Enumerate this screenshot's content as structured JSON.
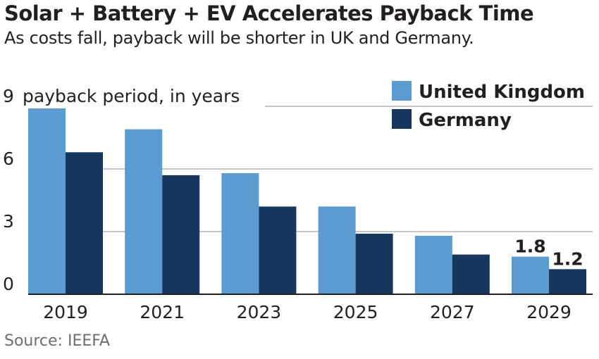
{
  "header": {
    "title": "Solar + Battery + EV Accelerates Payback Time",
    "subtitle": "As costs fall, payback will be shorter in UK and Germany."
  },
  "footer": {
    "source": "Source: IEEFA"
  },
  "colors": {
    "united_kingdom": "#5b9bd0",
    "germany": "#17365d",
    "grid": "#b3b3b3",
    "axis": "#231f20"
  },
  "chart_data": {
    "type": "bar",
    "title": "Solar + Battery + EV Accelerates Payback Time",
    "subtitle": "As costs fall, payback will be shorter in UK and Germany.",
    "ylabel": "payback period, in years",
    "categories": [
      "2019",
      "2021",
      "2023",
      "2025",
      "2027",
      "2029"
    ],
    "series": [
      {
        "name": "United Kingdom",
        "values": [
          8.9,
          7.9,
          5.8,
          4.2,
          2.8,
          1.8
        ]
      },
      {
        "name": "Germany",
        "values": [
          6.8,
          5.7,
          4.2,
          2.9,
          1.9,
          1.2
        ]
      }
    ],
    "ylim": [
      0,
      9
    ],
    "yticks": [
      "0",
      "3",
      "6",
      "9"
    ],
    "data_labels": {
      "United Kingdom": {
        "index": 5,
        "text": "1.8"
      },
      "Germany": {
        "index": 5,
        "text": "1.2"
      }
    },
    "grid": true,
    "legend": "top-right"
  }
}
